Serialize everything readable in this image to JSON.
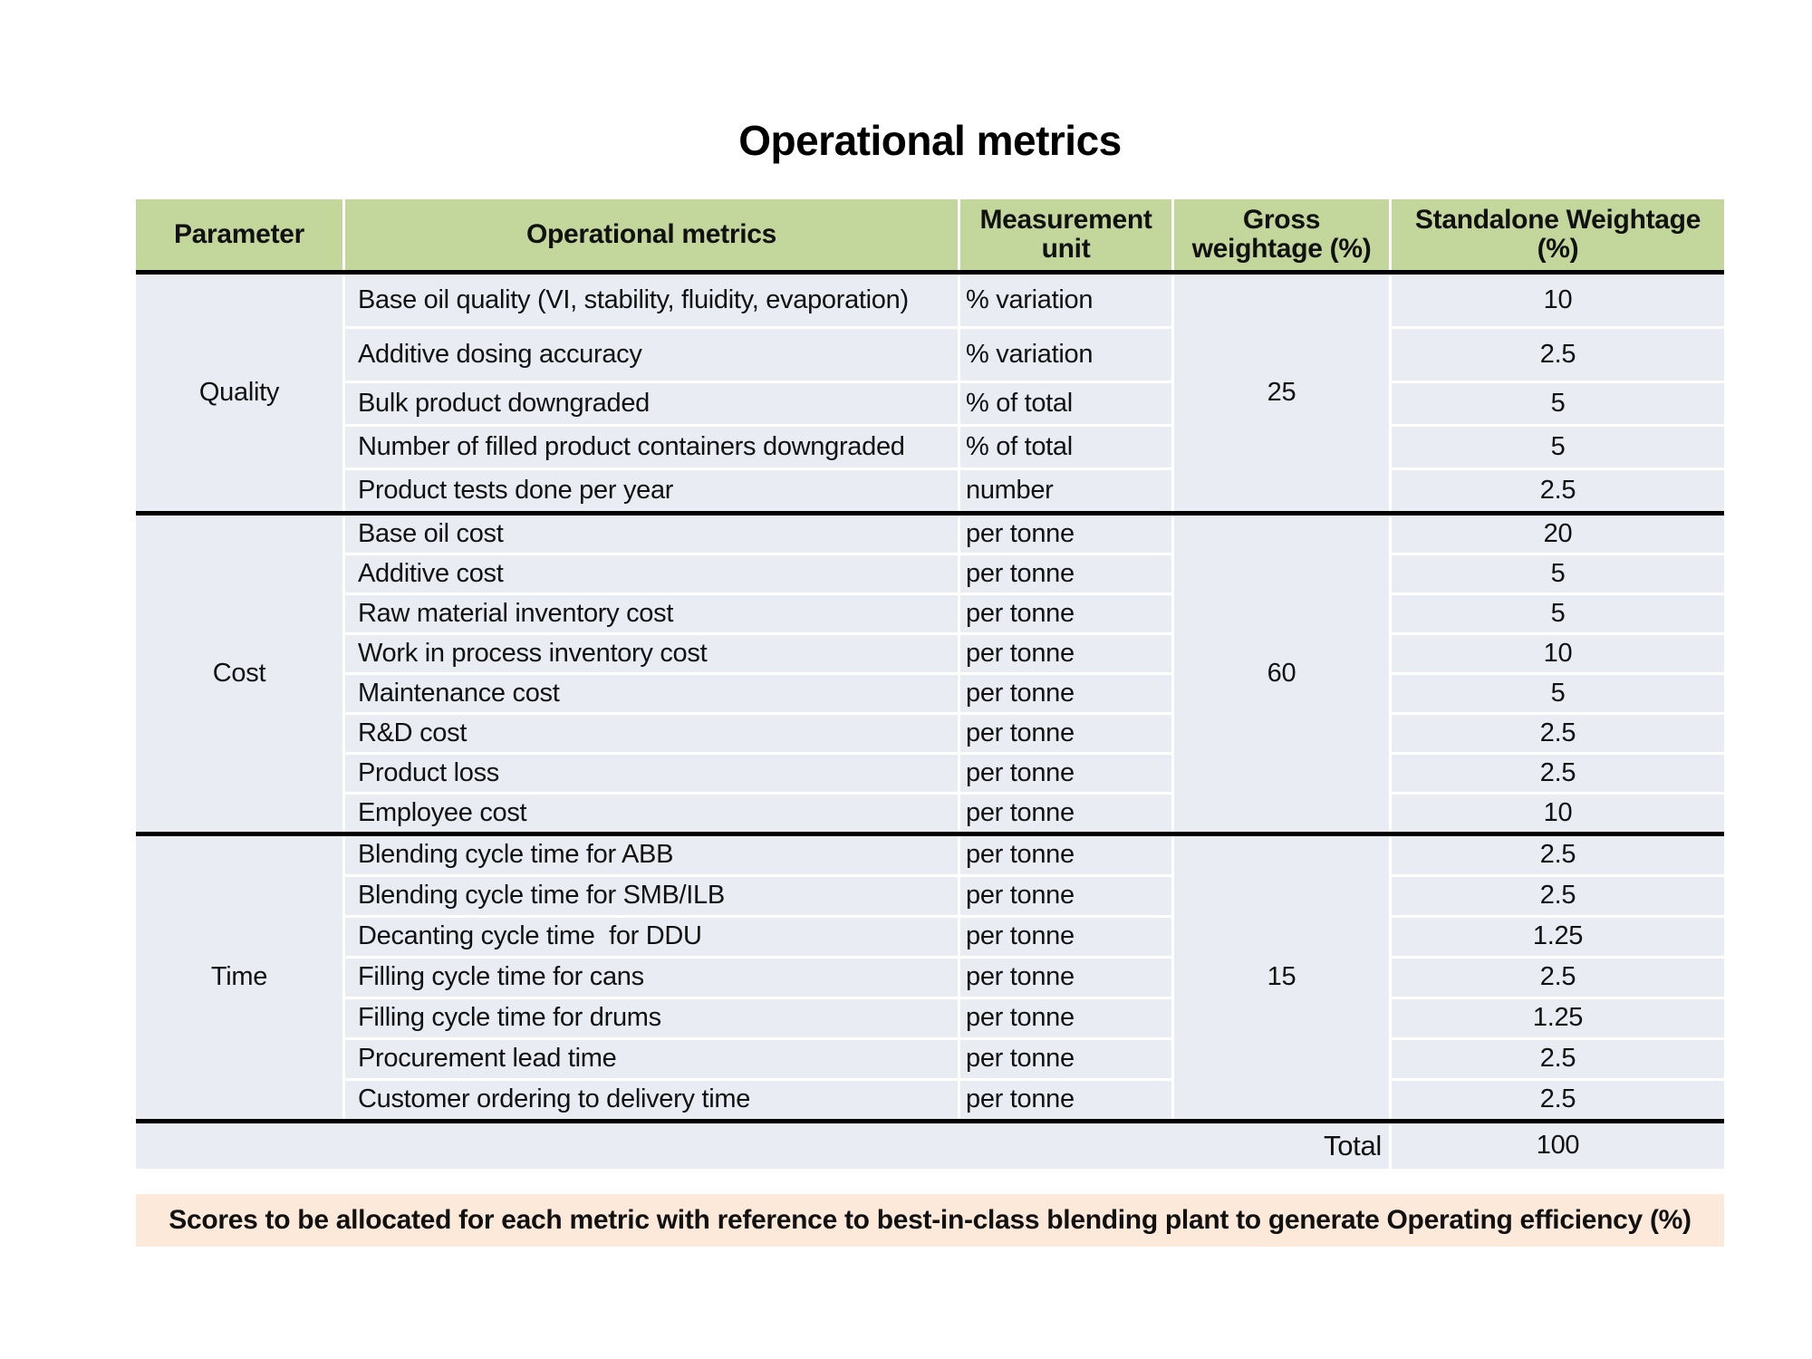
{
  "title": "Operational metrics",
  "table": {
    "headers": [
      "Parameter",
      "Operational metrics",
      "Measurement unit",
      "Gross weightage (%)",
      "Standalone Weightage (%)"
    ],
    "sections": [
      {
        "parameter": "Quality",
        "gross_weightage": "25",
        "rows": [
          {
            "metric": "Base oil quality (VI, stability, fluidity, evaporation)",
            "unit": "% variation",
            "standalone": "10"
          },
          {
            "metric": "Additive dosing accuracy",
            "unit": "% variation",
            "standalone": "2.5"
          },
          {
            "metric": "Bulk product downgraded",
            "unit": "% of total",
            "standalone": "5"
          },
          {
            "metric": "Number of filled product containers downgraded",
            "unit": "% of total",
            "standalone": "5"
          },
          {
            "metric": "Product tests done per year",
            "unit": "number",
            "standalone": "2.5"
          }
        ]
      },
      {
        "parameter": "Cost",
        "gross_weightage": "60",
        "rows": [
          {
            "metric": "Base oil cost",
            "unit": "per tonne",
            "standalone": "20"
          },
          {
            "metric": "Additive cost",
            "unit": "per tonne",
            "standalone": "5"
          },
          {
            "metric": "Raw material inventory cost",
            "unit": "per tonne",
            "standalone": "5"
          },
          {
            "metric": "Work in process inventory cost",
            "unit": "per tonne",
            "standalone": "10"
          },
          {
            "metric": "Maintenance cost",
            "unit": "per tonne",
            "standalone": "5"
          },
          {
            "metric": "R&D cost",
            "unit": "per tonne",
            "standalone": "2.5"
          },
          {
            "metric": "Product loss",
            "unit": "per tonne",
            "standalone": "2.5"
          },
          {
            "metric": "Employee cost",
            "unit": "per tonne",
            "standalone": "10"
          }
        ]
      },
      {
        "parameter": "Time",
        "gross_weightage": "15",
        "rows": [
          {
            "metric": "Blending cycle time for ABB",
            "unit": "per tonne",
            "standalone": "2.5"
          },
          {
            "metric": "Blending cycle time for SMB/ILB",
            "unit": "per tonne",
            "standalone": "2.5"
          },
          {
            "metric": "Decanting cycle time  for DDU",
            "unit": "per tonne",
            "standalone": "1.25"
          },
          {
            "metric": "Filling cycle time for cans",
            "unit": "per tonne",
            "standalone": "2.5"
          },
          {
            "metric": "Filling cycle time for drums",
            "unit": "per tonne",
            "standalone": "1.25"
          },
          {
            "metric": "Procurement lead time",
            "unit": "per tonne",
            "standalone": "2.5"
          },
          {
            "metric": "Customer ordering to delivery time",
            "unit": "per tonne",
            "standalone": "2.5"
          }
        ]
      }
    ],
    "total_label": "Total",
    "total_value": "100"
  },
  "footnote": "Scores to be allocated for each metric with reference to best-in-class blending plant to generate Operating efficiency (%)",
  "colors": {
    "header_bg": "#C3D69B",
    "row_bg": "#E9EDF3",
    "footnote_bg": "#FDE9D9",
    "section_divider": "#000000"
  }
}
